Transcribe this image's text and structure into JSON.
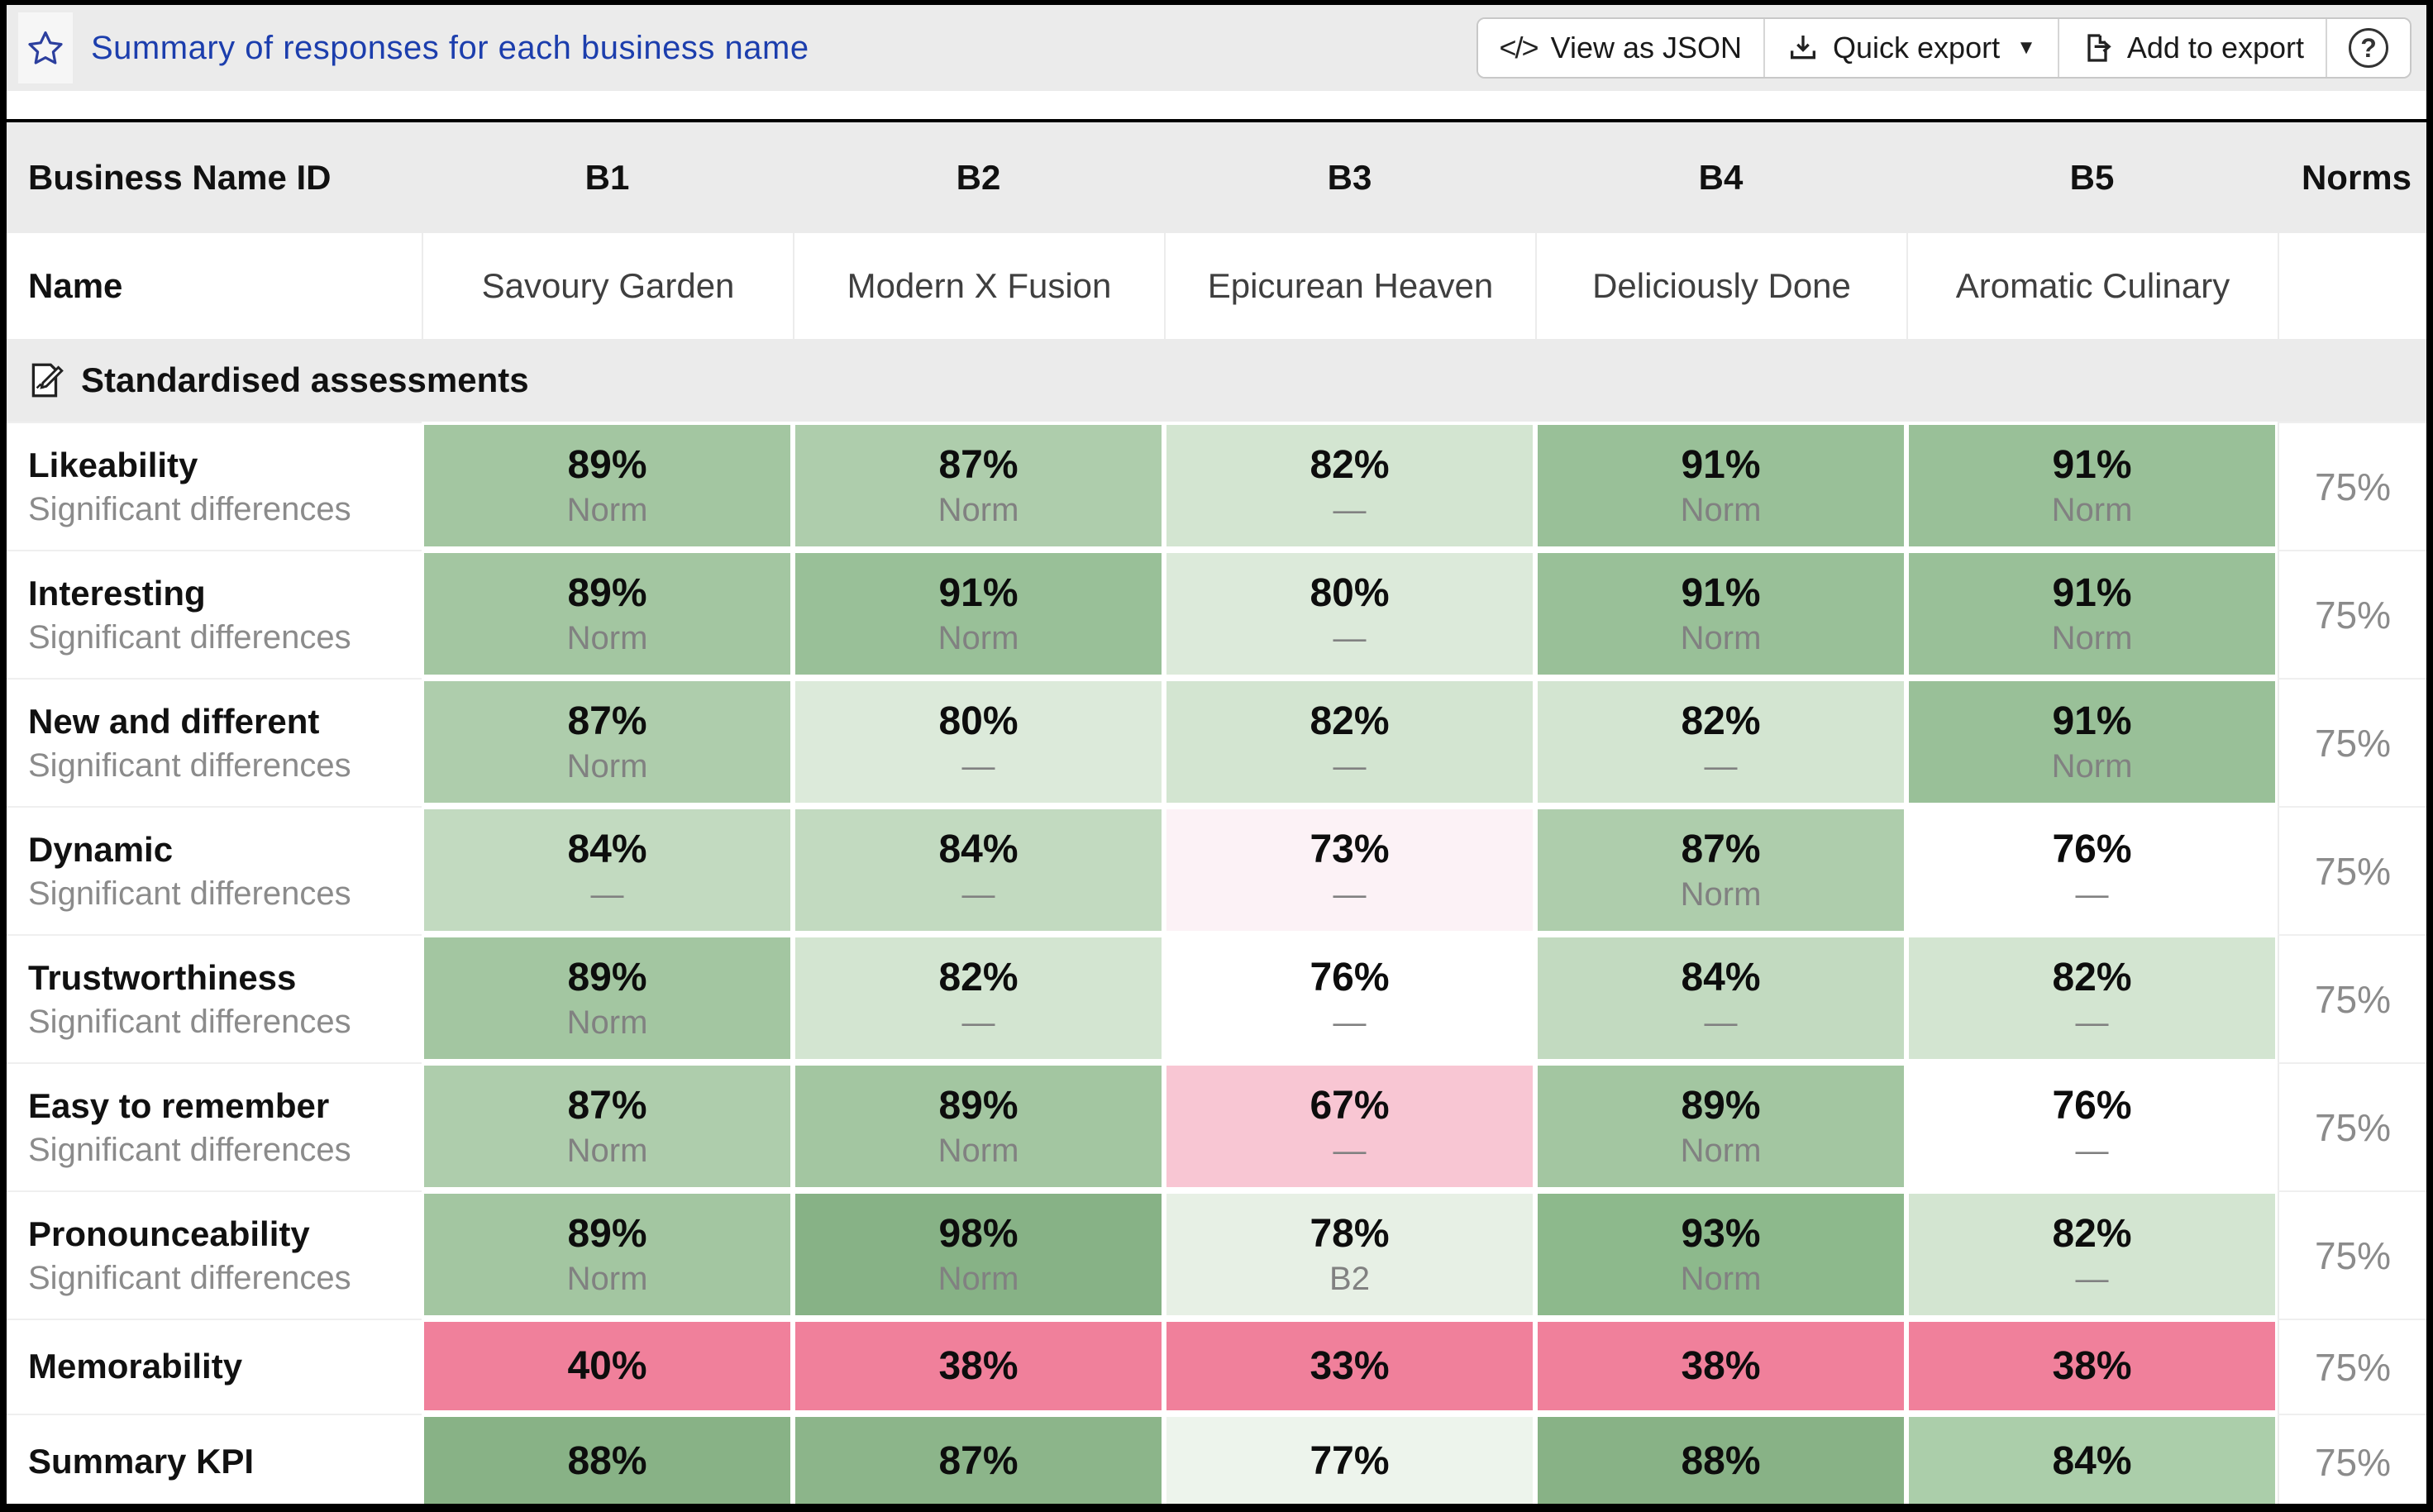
{
  "toolbar": {
    "title": "Summary of responses for each business name",
    "star_icon": "favorite-star-icon",
    "code_glyph": "</>",
    "view_json_label": "View as JSON",
    "quick_export_label": "Quick export",
    "quick_export_caret": "▼",
    "add_to_export_label": "Add to export",
    "help_glyph": "?"
  },
  "colors": {
    "toolbar_bg": "#ebebeb",
    "title_blue": "#1c3ead",
    "header_bg": "#ebebeb",
    "strong_green": "#87b286",
    "strong_pink": "#f0809b",
    "note_gray": "#818181"
  },
  "table": {
    "header": {
      "label_col": "Business Name ID",
      "columns": [
        "B1",
        "B2",
        "B3",
        "B4",
        "B5"
      ],
      "norms_col": "Norms"
    },
    "name_row": {
      "label": "Name",
      "values": [
        "Savoury Garden",
        "Modern X Fusion",
        "Epicurean Heaven",
        "Deliciously Done",
        "Aromatic Culinary"
      ]
    },
    "section": {
      "title": "Standardised assessments",
      "icon": "assessment-note-icon"
    },
    "rows": [
      {
        "label": "Likeability",
        "sublabel": "Significant differences",
        "norm": "75%",
        "cells": [
          {
            "value": "89%",
            "note": "Norm",
            "bg": "#a3c6a1"
          },
          {
            "value": "87%",
            "note": "Norm",
            "bg": "#aecdac"
          },
          {
            "value": "82%",
            "note": "—",
            "bg": "#d3e5d1"
          },
          {
            "value": "91%",
            "note": "Norm",
            "bg": "#99c098"
          },
          {
            "value": "91%",
            "note": "Norm",
            "bg": "#99c098"
          }
        ]
      },
      {
        "label": "Interesting",
        "sublabel": "Significant differences",
        "norm": "75%",
        "cells": [
          {
            "value": "89%",
            "note": "Norm",
            "bg": "#a3c6a1"
          },
          {
            "value": "91%",
            "note": "Norm",
            "bg": "#99c098"
          },
          {
            "value": "80%",
            "note": "—",
            "bg": "#dceada"
          },
          {
            "value": "91%",
            "note": "Norm",
            "bg": "#99c098"
          },
          {
            "value": "91%",
            "note": "Norm",
            "bg": "#99c098"
          }
        ]
      },
      {
        "label": "New and different",
        "sublabel": "Significant differences",
        "norm": "75%",
        "cells": [
          {
            "value": "87%",
            "note": "Norm",
            "bg": "#aecdac"
          },
          {
            "value": "80%",
            "note": "—",
            "bg": "#dceada"
          },
          {
            "value": "82%",
            "note": "—",
            "bg": "#d3e5d1"
          },
          {
            "value": "82%",
            "note": "—",
            "bg": "#d3e5d1"
          },
          {
            "value": "91%",
            "note": "Norm",
            "bg": "#99c098"
          }
        ]
      },
      {
        "label": "Dynamic",
        "sublabel": "Significant differences",
        "norm": "75%",
        "cells": [
          {
            "value": "84%",
            "note": "—",
            "bg": "#c2dac0"
          },
          {
            "value": "84%",
            "note": "—",
            "bg": "#c2dac0"
          },
          {
            "value": "73%",
            "note": "—",
            "bg": "#fcf2f6"
          },
          {
            "value": "87%",
            "note": "Norm",
            "bg": "#aecdac"
          },
          {
            "value": "76%",
            "note": "—",
            "bg": "#ffffff"
          }
        ]
      },
      {
        "label": "Trustworthiness",
        "sublabel": "Significant differences",
        "norm": "75%",
        "cells": [
          {
            "value": "89%",
            "note": "Norm",
            "bg": "#a3c6a1"
          },
          {
            "value": "82%",
            "note": "—",
            "bg": "#d3e5d1"
          },
          {
            "value": "76%",
            "note": "—",
            "bg": "#ffffff"
          },
          {
            "value": "84%",
            "note": "—",
            "bg": "#c2dac0"
          },
          {
            "value": "82%",
            "note": "—",
            "bg": "#d3e5d1"
          }
        ]
      },
      {
        "label": "Easy to remember",
        "sublabel": "Significant differences",
        "norm": "75%",
        "cells": [
          {
            "value": "87%",
            "note": "Norm",
            "bg": "#aecdac"
          },
          {
            "value": "89%",
            "note": "Norm",
            "bg": "#a3c6a1"
          },
          {
            "value": "67%",
            "note": "—",
            "bg": "#f8c6d3"
          },
          {
            "value": "89%",
            "note": "Norm",
            "bg": "#a3c6a1"
          },
          {
            "value": "76%",
            "note": "—",
            "bg": "#ffffff"
          }
        ]
      },
      {
        "label": "Pronounceability",
        "sublabel": "Significant differences",
        "norm": "75%",
        "cells": [
          {
            "value": "89%",
            "note": "Norm",
            "bg": "#a3c6a1"
          },
          {
            "value": "98%",
            "note": "Norm",
            "bg": "#87b286"
          },
          {
            "value": "78%",
            "note": "B2",
            "bg": "#e7f0e5"
          },
          {
            "value": "93%",
            "note": "Norm",
            "bg": "#8db98c"
          },
          {
            "value": "82%",
            "note": "—",
            "bg": "#d3e5d1"
          }
        ]
      },
      {
        "label": "Memorability",
        "sublabel": "",
        "norm": "75%",
        "compact": true,
        "cells": [
          {
            "value": "40%",
            "note": "",
            "bg": "#f0809b"
          },
          {
            "value": "38%",
            "note": "",
            "bg": "#f0809b"
          },
          {
            "value": "33%",
            "note": "",
            "bg": "#f0809b"
          },
          {
            "value": "38%",
            "note": "",
            "bg": "#f0809b"
          },
          {
            "value": "38%",
            "note": "",
            "bg": "#f0809b"
          }
        ]
      },
      {
        "label": "Summary KPI",
        "sublabel": "",
        "norm": "75%",
        "compact": true,
        "cells": [
          {
            "value": "88%",
            "note": "",
            "bg": "#88b286"
          },
          {
            "value": "87%",
            "note": "",
            "bg": "#8cb58a"
          },
          {
            "value": "77%",
            "note": "",
            "bg": "#edf4ec"
          },
          {
            "value": "88%",
            "note": "",
            "bg": "#88b286"
          },
          {
            "value": "84%",
            "note": "",
            "bg": "#abceaa"
          }
        ]
      }
    ]
  }
}
